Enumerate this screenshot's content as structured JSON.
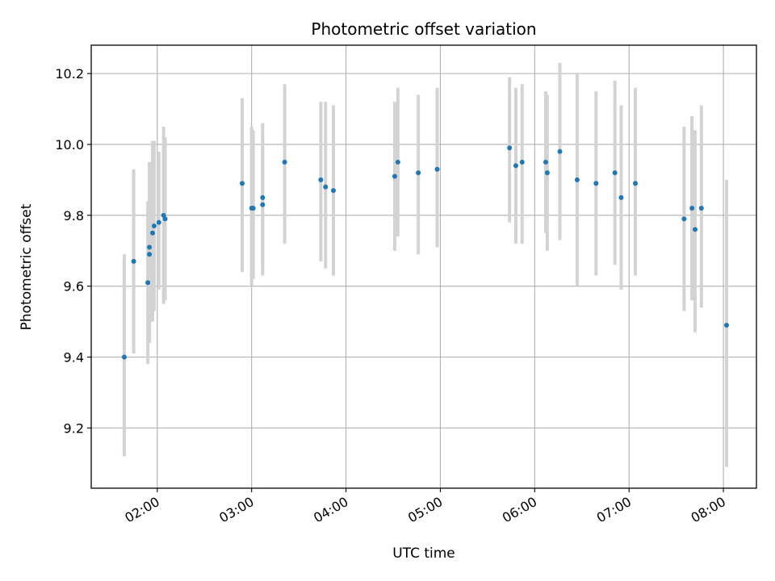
{
  "chart_data": {
    "type": "scatter",
    "title": "Photometric offset variation",
    "xlabel": "UTC time",
    "ylabel": "Photometric offset",
    "x_ticks": [
      "02:00",
      "03:00",
      "04:00",
      "05:00",
      "06:00",
      "07:00",
      "08:00"
    ],
    "y_ticks": [
      "9.2",
      "9.4",
      "9.6",
      "9.8",
      "10.0",
      "10.2"
    ],
    "xlim": [
      "01:18",
      "08:21"
    ],
    "ylim": [
      9.03,
      10.28
    ],
    "grid": true,
    "point_color": "#1f77b4",
    "errorbar_color": "#d3d3d3",
    "points": [
      {
        "x": "01:39",
        "y": 9.4,
        "lo": 9.12,
        "hi": 9.69
      },
      {
        "x": "01:45",
        "y": 9.67,
        "lo": 9.41,
        "hi": 9.93
      },
      {
        "x": "01:54",
        "y": 9.61,
        "lo": 9.38,
        "hi": 9.84
      },
      {
        "x": "01:55",
        "y": 9.69,
        "lo": 9.44,
        "hi": 9.95
      },
      {
        "x": "01:55",
        "y": 9.71,
        "lo": 9.44,
        "hi": 9.95
      },
      {
        "x": "01:57",
        "y": 9.75,
        "lo": 9.5,
        "hi": 10.01
      },
      {
        "x": "01:58",
        "y": 9.77,
        "lo": 9.53,
        "hi": 10.01
      },
      {
        "x": "02:01",
        "y": 9.78,
        "lo": 9.59,
        "hi": 9.98
      },
      {
        "x": "02:04",
        "y": 9.8,
        "lo": 9.55,
        "hi": 10.05
      },
      {
        "x": "02:05",
        "y": 9.79,
        "lo": 9.56,
        "hi": 10.02
      },
      {
        "x": "02:54",
        "y": 9.89,
        "lo": 9.64,
        "hi": 10.13
      },
      {
        "x": "03:00",
        "y": 9.82,
        "lo": 9.6,
        "hi": 10.05
      },
      {
        "x": "03:01",
        "y": 9.82,
        "lo": 9.62,
        "hi": 10.04
      },
      {
        "x": "03:07",
        "y": 9.85,
        "lo": 9.63,
        "hi": 10.06
      },
      {
        "x": "03:07",
        "y": 9.83,
        "lo": 9.65,
        "hi": 10.02
      },
      {
        "x": "03:21",
        "y": 9.95,
        "lo": 9.72,
        "hi": 10.17
      },
      {
        "x": "03:44",
        "y": 9.9,
        "lo": 9.67,
        "hi": 10.12
      },
      {
        "x": "03:47",
        "y": 9.88,
        "lo": 9.65,
        "hi": 10.12
      },
      {
        "x": "03:52",
        "y": 9.87,
        "lo": 9.63,
        "hi": 10.11
      },
      {
        "x": "04:31",
        "y": 9.91,
        "lo": 9.7,
        "hi": 10.12
      },
      {
        "x": "04:33",
        "y": 9.95,
        "lo": 9.74,
        "hi": 10.16
      },
      {
        "x": "04:46",
        "y": 9.92,
        "lo": 9.69,
        "hi": 10.14
      },
      {
        "x": "04:58",
        "y": 9.93,
        "lo": 9.71,
        "hi": 10.16
      },
      {
        "x": "05:44",
        "y": 9.99,
        "lo": 9.78,
        "hi": 10.19
      },
      {
        "x": "05:48",
        "y": 9.94,
        "lo": 9.72,
        "hi": 10.16
      },
      {
        "x": "05:52",
        "y": 9.95,
        "lo": 9.72,
        "hi": 10.17
      },
      {
        "x": "06:07",
        "y": 9.95,
        "lo": 9.75,
        "hi": 10.15
      },
      {
        "x": "06:08",
        "y": 9.92,
        "lo": 9.7,
        "hi": 10.14
      },
      {
        "x": "06:16",
        "y": 9.98,
        "lo": 9.73,
        "hi": 10.23
      },
      {
        "x": "06:27",
        "y": 9.9,
        "lo": 9.6,
        "hi": 10.2
      },
      {
        "x": "06:39",
        "y": 9.89,
        "lo": 9.63,
        "hi": 10.15
      },
      {
        "x": "06:51",
        "y": 9.92,
        "lo": 9.66,
        "hi": 10.18
      },
      {
        "x": "06:55",
        "y": 9.85,
        "lo": 9.59,
        "hi": 10.11
      },
      {
        "x": "07:04",
        "y": 9.89,
        "lo": 9.63,
        "hi": 10.16
      },
      {
        "x": "07:35",
        "y": 9.79,
        "lo": 9.53,
        "hi": 10.05
      },
      {
        "x": "07:40",
        "y": 9.82,
        "lo": 9.56,
        "hi": 10.08
      },
      {
        "x": "07:42",
        "y": 9.76,
        "lo": 9.47,
        "hi": 10.04
      },
      {
        "x": "07:46",
        "y": 9.82,
        "lo": 9.54,
        "hi": 10.11
      },
      {
        "x": "08:02",
        "y": 9.49,
        "lo": 9.09,
        "hi": 9.9
      }
    ]
  }
}
